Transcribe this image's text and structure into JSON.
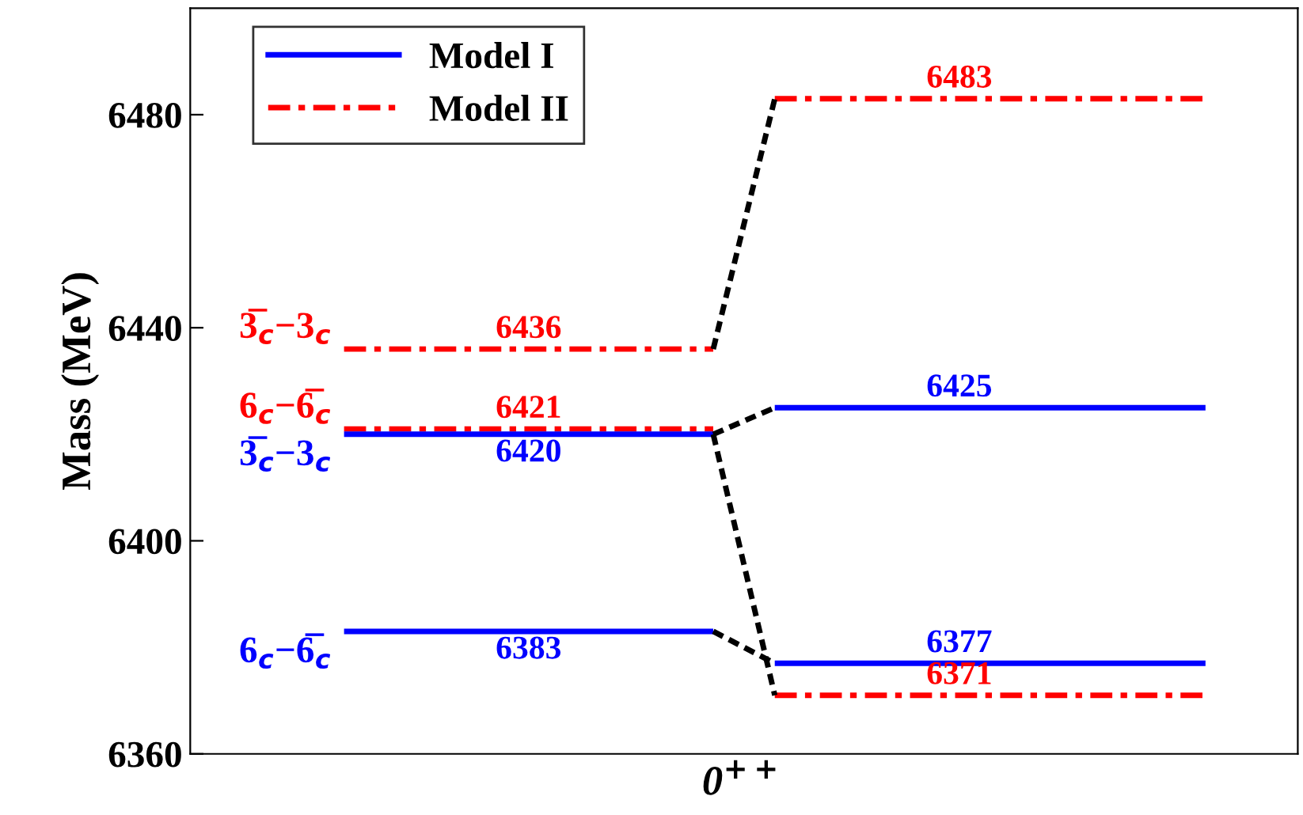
{
  "chart_data": {
    "type": "line",
    "xlabel": "0$^{++}$",
    "ylabel": "Mass (MeV)",
    "categories": [
      null,
      null,
      null,
      null,
      null,
      null,
      null,
      null,
      null,
      null,
      null,
      null,
      null,
      null,
      null,
      null,
      null,
      null
    ],
    "ylim": [
      6360,
      6500
    ],
    "yticks": [
      6360,
      6400,
      6440,
      6480
    ],
    "legend": "top left",
    "grid": false,
    "series": [
      {
        "name": "3̅$_{c}$−3$_{c}$",
        "color": "#ff0000",
        "line_style": "dashdot",
        "values": [
          null,
          null,
          6436,
          6436,
          6436,
          6436,
          6436,
          6436,
          6436,
          null,
          null,
          null,
          null,
          null,
          null,
          null,
          null,
          null
        ],
        "value_labels": [
          null,
          null,
          null,
          null,
          null,
          "6436",
          null,
          null,
          null,
          null,
          null,
          null,
          null,
          null,
          null,
          null,
          null,
          null
        ]
      },
      {
        "name": "6$_{c}$−6̅$_{c}$",
        "color": "#ff0000",
        "line_style": "dashdot",
        "values": [
          null,
          null,
          6421,
          6421,
          6421,
          6421,
          6421,
          6421,
          6421,
          null,
          null,
          null,
          null,
          null,
          null,
          null,
          null,
          null
        ],
        "value_labels": [
          null,
          null,
          null,
          null,
          null,
          "6421",
          null,
          null,
          null,
          null,
          null,
          null,
          null,
          null,
          null,
          null,
          null,
          null
        ]
      },
      {
        "name": "3̅$_{c}$−3$_{c}$",
        "color": "#0000ff",
        "line_style": "solid",
        "values": [
          null,
          null,
          6420,
          6420,
          6420,
          6420,
          6420,
          6420,
          6420,
          null,
          null,
          null,
          null,
          null,
          null,
          null,
          null,
          null
        ],
        "value_labels": [
          null,
          null,
          null,
          null,
          null,
          "6420",
          null,
          null,
          null,
          null,
          null,
          null,
          null,
          null,
          null,
          null,
          null,
          null
        ]
      },
      {
        "name": "6$_{c}$−6̅$_{c}$",
        "color": "#0000ff",
        "line_style": "solid",
        "values": [
          null,
          null,
          6383,
          6383,
          6383,
          6383,
          6383,
          6383,
          6383,
          null,
          null,
          null,
          null,
          null,
          null,
          null,
          null,
          null
        ],
        "value_labels": [
          null,
          null,
          null,
          null,
          null,
          "6383",
          null,
          null,
          null,
          null,
          null,
          null,
          null,
          null,
          null,
          null,
          null,
          null
        ]
      },
      {
        "name": "Model I",
        "color": "#0000ff",
        "line_style": "solid",
        "values": [
          null,
          null,
          null,
          null,
          null,
          null,
          null,
          null,
          null,
          6425,
          6425,
          6425,
          6425,
          6425,
          6425,
          6425,
          6425,
          null
        ],
        "value_labels": [
          null,
          null,
          null,
          null,
          null,
          null,
          null,
          null,
          null,
          null,
          null,
          null,
          "6425",
          null,
          null,
          null,
          null,
          null
        ]
      },
      {
        "color": "#0000ff",
        "line_style": "solid",
        "values": [
          null,
          null,
          null,
          null,
          null,
          null,
          null,
          null,
          null,
          6377,
          6377,
          6377,
          6377,
          6377,
          6377,
          6377,
          6377,
          null
        ],
        "value_labels": [
          null,
          null,
          null,
          null,
          null,
          null,
          null,
          null,
          null,
          null,
          null,
          null,
          "6377",
          null,
          null,
          null,
          null,
          null
        ]
      },
      {
        "name": "Model II",
        "color": "#ff0000",
        "line_style": "dashdot",
        "values": [
          null,
          null,
          null,
          null,
          null,
          null,
          null,
          null,
          null,
          6483,
          6483,
          6483,
          6483,
          6483,
          6483,
          6483,
          6483,
          null
        ],
        "value_labels": [
          null,
          null,
          null,
          null,
          null,
          null,
          null,
          null,
          null,
          null,
          null,
          null,
          "6483",
          null,
          null,
          null,
          null,
          null
        ]
      },
      {
        "color": "#ff0000",
        "line_style": "dashdot",
        "values": [
          null,
          null,
          null,
          null,
          null,
          null,
          null,
          null,
          null,
          6371,
          6371,
          6371,
          6371,
          6371,
          6371,
          6371,
          6371,
          null
        ],
        "value_labels": [
          null,
          null,
          null,
          null,
          null,
          null,
          null,
          null,
          null,
          null,
          null,
          null,
          "6371",
          null,
          null,
          null,
          null,
          null
        ]
      },
      {
        "color": "#000000",
        "line_style": "dashed",
        "values": [
          null,
          null,
          null,
          null,
          null,
          null,
          null,
          null,
          6436,
          6483,
          null,
          null,
          null,
          null,
          null,
          null,
          null,
          null
        ]
      },
      {
        "color": "#000000",
        "line_style": "dashed",
        "values": [
          null,
          null,
          null,
          null,
          null,
          null,
          null,
          null,
          6420,
          6425,
          null,
          null,
          null,
          null,
          null,
          null,
          null,
          null
        ]
      },
      {
        "color": "#000000",
        "line_style": "dashed",
        "values": [
          null,
          null,
          null,
          null,
          null,
          null,
          null,
          null,
          6420,
          6371,
          null,
          null,
          null,
          null,
          null,
          null,
          null,
          null
        ]
      },
      {
        "color": "#000000",
        "line_style": "dashed",
        "values": [
          null,
          null,
          null,
          null,
          null,
          null,
          null,
          null,
          6383,
          6377,
          null,
          null,
          null,
          null,
          null,
          null,
          null,
          null
        ]
      }
    ]
  }
}
